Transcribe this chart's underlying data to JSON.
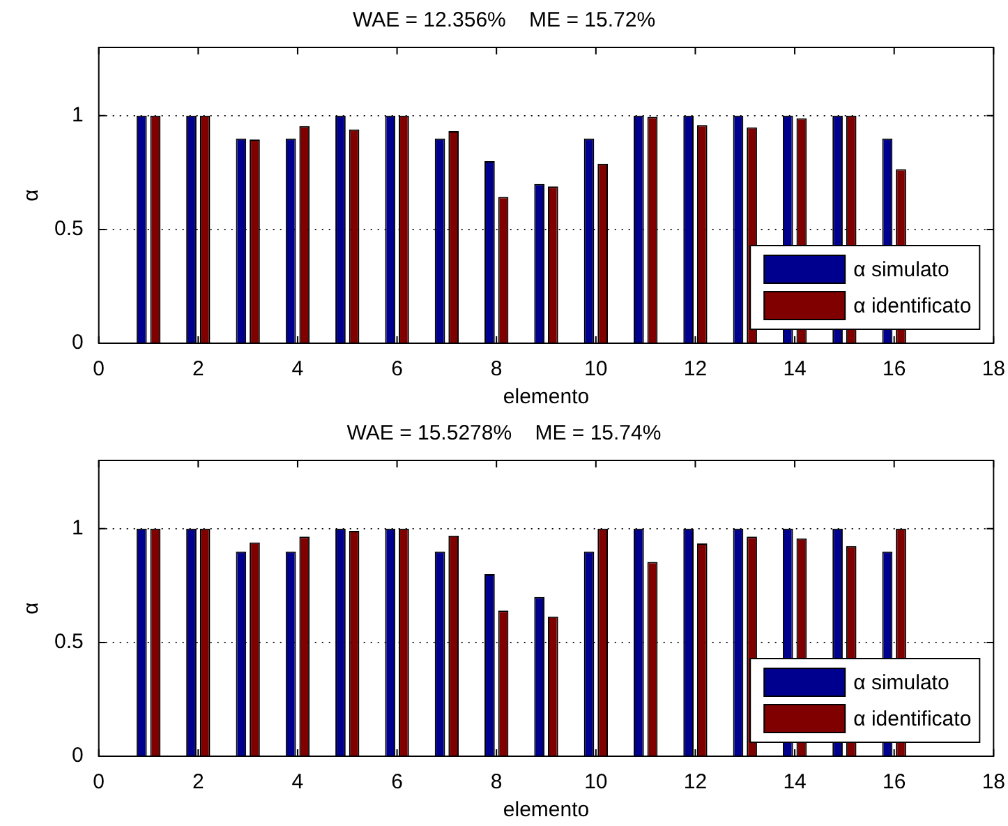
{
  "chart_data": [
    {
      "type": "bar",
      "title": "WAE = 12.356%    ME = 15.72%",
      "xlabel": "elemento",
      "ylabel": "α",
      "x": [
        1,
        2,
        3,
        4,
        5,
        6,
        7,
        8,
        9,
        10,
        11,
        12,
        13,
        14,
        15,
        16
      ],
      "series": [
        {
          "name": "α simulato",
          "color": "#00008f",
          "values": [
            1,
            1,
            0.9,
            0.9,
            1,
            1,
            0.9,
            0.8,
            0.7,
            0.9,
            1,
            1,
            1,
            1,
            1,
            0.9
          ]
        },
        {
          "name": "α identificato",
          "color": "#800000",
          "values": [
            1,
            1,
            0.895,
            0.954,
            0.94,
            1,
            0.932,
            0.643,
            0.689,
            0.789,
            0.995,
            0.959,
            0.949,
            0.989,
            1,
            0.765
          ]
        }
      ],
      "xlim": [
        0,
        18
      ],
      "xticks": [
        0,
        2,
        4,
        6,
        8,
        10,
        12,
        14,
        16,
        18
      ],
      "ylim": [
        0,
        1.3
      ],
      "yticks": [
        0,
        0.5,
        1
      ],
      "grid": "y",
      "legend": "bottom right"
    },
    {
      "type": "bar",
      "title": "WAE = 15.5278%    ME = 15.74%",
      "xlabel": "elemento",
      "ylabel": "α",
      "x": [
        1,
        2,
        3,
        4,
        5,
        6,
        7,
        8,
        9,
        10,
        11,
        12,
        13,
        14,
        15,
        16
      ],
      "series": [
        {
          "name": "α simulato",
          "color": "#00008f",
          "values": [
            1,
            1,
            0.9,
            0.9,
            1,
            1,
            0.9,
            0.8,
            0.7,
            0.9,
            1,
            1,
            1,
            1,
            1,
            0.9
          ]
        },
        {
          "name": "α identificato",
          "color": "#800000",
          "values": [
            1,
            1,
            0.94,
            0.965,
            0.99,
            1,
            0.97,
            0.64,
            0.614,
            1,
            0.854,
            0.935,
            0.965,
            0.957,
            0.924,
            1
          ]
        }
      ],
      "xlim": [
        0,
        18
      ],
      "xticks": [
        0,
        2,
        4,
        6,
        8,
        10,
        12,
        14,
        16,
        18
      ],
      "ylim": [
        0,
        1.3
      ],
      "yticks": [
        0,
        0.5,
        1
      ],
      "grid": "y",
      "legend": "bottom right"
    }
  ]
}
